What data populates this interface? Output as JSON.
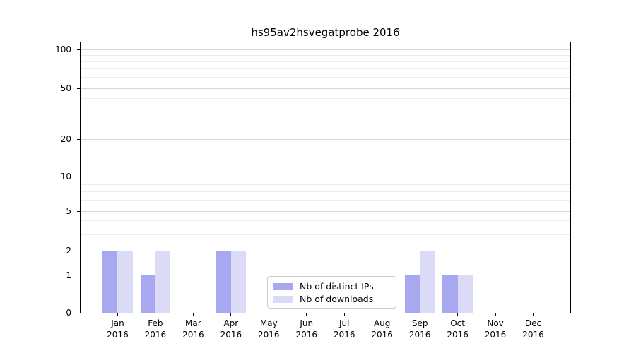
{
  "chart_data": {
    "type": "bar",
    "title": "hs95av2hsvegatprobe 2016",
    "x_ticks": [
      {
        "month": "Jan",
        "year": "2016"
      },
      {
        "month": "Feb",
        "year": "2016"
      },
      {
        "month": "Mar",
        "year": "2016"
      },
      {
        "month": "Apr",
        "year": "2016"
      },
      {
        "month": "May",
        "year": "2016"
      },
      {
        "month": "Jun",
        "year": "2016"
      },
      {
        "month": "Jul",
        "year": "2016"
      },
      {
        "month": "Aug",
        "year": "2016"
      },
      {
        "month": "Sep",
        "year": "2016"
      },
      {
        "month": "Oct",
        "year": "2016"
      },
      {
        "month": "Nov",
        "year": "2016"
      },
      {
        "month": "Dec",
        "year": "2016"
      }
    ],
    "series": [
      {
        "name": "Nb of distinct IPs",
        "color": "#a8a8f1",
        "values": [
          2,
          1,
          0,
          2,
          0,
          0,
          0,
          0,
          1,
          1,
          0,
          0
        ]
      },
      {
        "name": "Nb of downloads",
        "color": "#dbdbf8",
        "values": [
          2,
          2,
          0,
          2,
          0,
          0,
          0,
          0,
          2,
          1,
          0,
          0
        ]
      }
    ],
    "y_axis": {
      "scale": "symlog",
      "ticks": [
        0,
        1,
        2,
        5,
        10,
        20,
        50,
        100
      ],
      "minor_ticks": [
        3,
        4,
        6,
        7,
        8,
        9,
        30,
        40,
        60,
        70,
        80,
        90
      ],
      "range": [
        0,
        113
      ]
    },
    "legend": {
      "position": "lower center"
    },
    "grid": true,
    "colors": {
      "background": "#ffffff",
      "frame": "#000000",
      "grid_major": "#d6d6d6",
      "grid_minor": "#ededed",
      "legend_border": "#cccccc"
    }
  }
}
